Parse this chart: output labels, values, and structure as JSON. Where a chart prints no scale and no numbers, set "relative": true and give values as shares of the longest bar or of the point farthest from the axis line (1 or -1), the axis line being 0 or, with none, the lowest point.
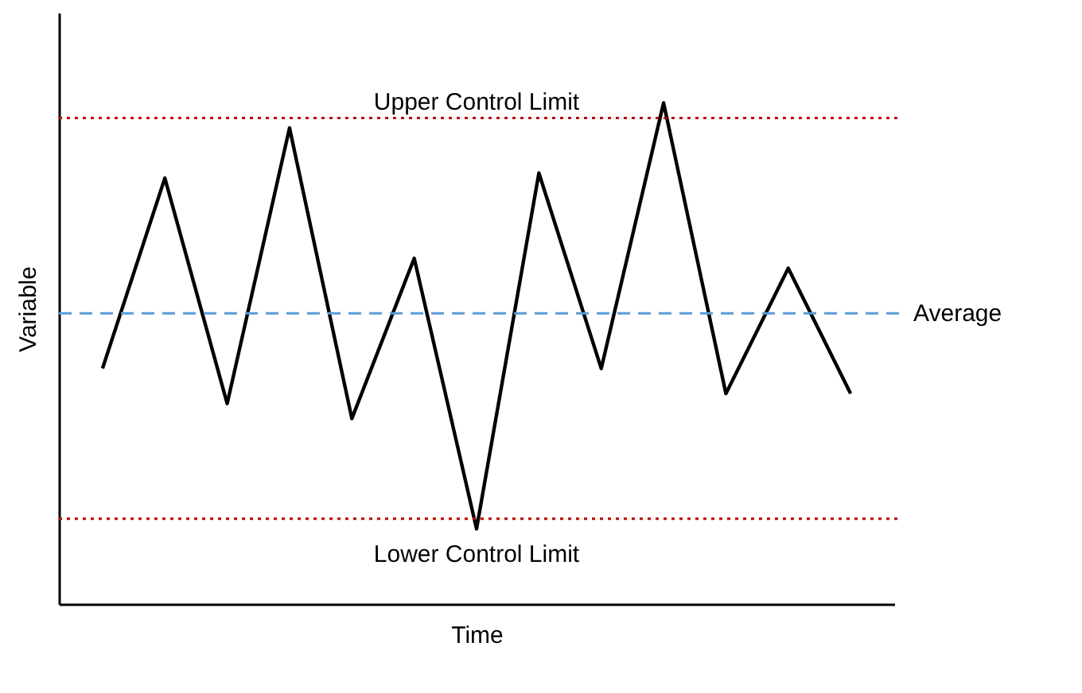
{
  "chart_data": {
    "type": "line",
    "xlabel": "Time",
    "ylabel": "Variable",
    "categories": [
      null,
      null,
      null,
      null,
      null,
      null,
      null,
      null,
      null,
      null,
      null,
      null,
      null
    ],
    "relative": true,
    "series": [
      {
        "color": "#000000",
        "values": [
          0.47,
          0.85,
          0.4,
          0.95,
          0.37,
          0.69,
          0.15,
          0.86,
          0.47,
          1.0,
          0.42,
          0.67,
          0.42
        ]
      }
    ],
    "marker": "none",
    "line_style": "solid",
    "ref_lines": [
      {
        "axis": "y",
        "value": 0.97,
        "label": "Upper Control Limit",
        "color": "#c00000",
        "line_style": "dotted"
      },
      {
        "axis": "y",
        "value": 0.58,
        "label": "Average",
        "color": "#5b9bd5",
        "line_style": "dashed"
      },
      {
        "axis": "y",
        "value": 0.17,
        "label": "Lower Control Limit",
        "color": "#c00000",
        "line_style": "dotted"
      }
    ]
  }
}
